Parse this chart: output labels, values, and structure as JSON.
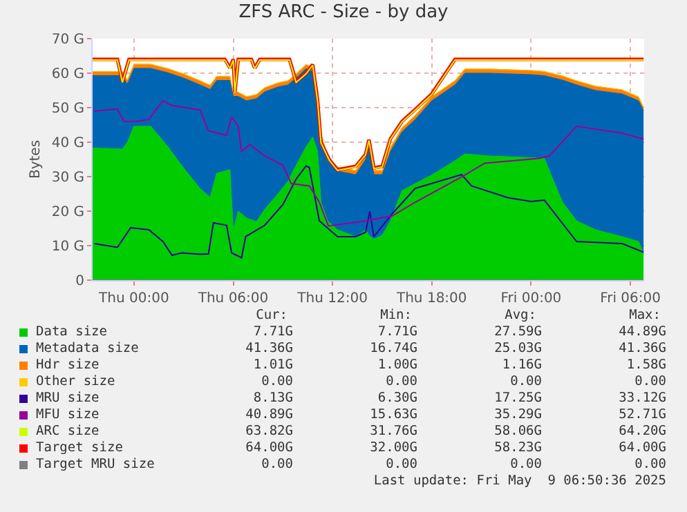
{
  "chart_data": {
    "type": "area",
    "stacked": true,
    "title": "ZFS ARC - Size - by day",
    "ylabel": "Bytes",
    "legend": "bottom",
    "grid": true,
    "xlim": [
      "2025-05-07T21:30",
      "2025-05-09T06:50"
    ],
    "xticks": [
      {
        "value": "2025-05-08T00:00",
        "label": "Thu 00:00"
      },
      {
        "value": "2025-05-08T06:00",
        "label": "Thu 06:00"
      },
      {
        "value": "2025-05-08T12:00",
        "label": "Thu 12:00"
      },
      {
        "value": "2025-05-08T18:00",
        "label": "Thu 18:00"
      },
      {
        "value": "2025-05-09T00:00",
        "label": "Fri 00:00"
      },
      {
        "value": "2025-05-09T06:00",
        "label": "Fri 06:00"
      }
    ],
    "ylim": [
      0,
      70
    ],
    "yticks": [
      0,
      {
        "value": 10,
        "label": "10 G"
      },
      {
        "value": 20,
        "label": "20 G"
      },
      {
        "value": 30,
        "label": "30 G"
      },
      {
        "value": 40,
        "label": "40 G"
      },
      {
        "value": 50,
        "label": "50 G"
      },
      {
        "value": 60,
        "label": "60 G"
      },
      {
        "value": 70,
        "label": "70 G"
      }
    ],
    "x": [
      "2025-05-07T21:30",
      "2025-05-07T23:18",
      "2025-05-07T23:36",
      "2025-05-08T00:00",
      "2025-05-08T01:00",
      "2025-05-08T02:00",
      "2025-05-08T03:00",
      "2025-05-08T04:00",
      "2025-05-08T04:36",
      "2025-05-08T05:00",
      "2025-05-08T05:48",
      "2025-05-08T06:00",
      "2025-05-08T06:18",
      "2025-05-08T06:48",
      "2025-05-08T07:24",
      "2025-05-08T07:54",
      "2025-05-08T08:42",
      "2025-05-08T09:18",
      "2025-05-08T09:48",
      "2025-05-08T10:24",
      "2025-05-08T10:48",
      "2025-05-08T11:06",
      "2025-05-08T11:18",
      "2025-05-08T11:42",
      "2025-05-08T12:18",
      "2025-05-08T13:24",
      "2025-05-08T14:00",
      "2025-05-08T14:12",
      "2025-05-08T14:30",
      "2025-05-08T15:00",
      "2025-05-08T15:30",
      "2025-05-08T16:12",
      "2025-05-08T17:00",
      "2025-05-08T18:00",
      "2025-05-08T19:24",
      "2025-05-08T20:00",
      "2025-05-08T21:30",
      "2025-05-09T00:00",
      "2025-05-09T00:48",
      "2025-05-09T01:12",
      "2025-05-09T01:54",
      "2025-05-09T02:45",
      "2025-05-09T03:54",
      "2025-05-09T05:30",
      "2025-05-09T06:30",
      "2025-05-09T06:48"
    ],
    "series": [
      {
        "name": "Data size",
        "color": "#00cc00",
        "values": [
          38.3,
          38,
          40,
          44.6,
          44.6,
          39,
          32.5,
          26.5,
          24,
          31,
          32,
          14.6,
          20,
          18,
          17,
          20.5,
          25,
          28.6,
          33.3,
          38.6,
          41.5,
          37.3,
          22.6,
          17.2,
          14.6,
          12.6,
          14.6,
          13,
          11.9,
          13,
          17.2,
          26,
          28,
          30.5,
          34.6,
          36.6,
          36,
          35.5,
          35.3,
          30.6,
          22.6,
          17.2,
          14.6,
          12.6,
          11.2,
          7.7
        ]
      },
      {
        "name": "Metadata size",
        "color": "#0066b3",
        "values": [
          21,
          21.3,
          16.8,
          16.8,
          16.8,
          21.2,
          26.1,
          30.1,
          31.3,
          26.9,
          25.9,
          38.7,
          33.3,
          34,
          35.6,
          34.1,
          31,
          28,
          25.3,
          22.7,
          19,
          17,
          18.7,
          17.4,
          17,
          18,
          20.4,
          26.3,
          18.7,
          17.6,
          20.1,
          17,
          18.6,
          21.5,
          22,
          23.4,
          24,
          24.1,
          24,
          28.2,
          35.4,
          39.4,
          40.4,
          41.4,
          40.8,
          41.4
        ]
      },
      {
        "name": "Hdr size",
        "color": "#ff8000",
        "values": [
          1.2,
          1.2,
          1.2,
          1.2,
          1.2,
          1.2,
          1.2,
          1.2,
          1.2,
          1.2,
          1.2,
          1.2,
          1.2,
          1.2,
          1.2,
          1.2,
          1.2,
          1.2,
          1.2,
          1.2,
          1.2,
          1.2,
          1.2,
          1.2,
          1.2,
          1.2,
          1.2,
          1.2,
          1.2,
          1.2,
          1.2,
          1.2,
          1.2,
          1.2,
          1.2,
          1.2,
          1.2,
          1.2,
          1.2,
          1.2,
          1.2,
          1.2,
          1.2,
          1.2,
          1.1,
          1.0
        ]
      },
      {
        "name": "Other size",
        "color": "#ffcc00",
        "values": [
          null,
          null,
          null,
          null,
          null,
          null,
          null,
          null,
          null,
          null,
          null,
          null,
          null,
          null,
          null,
          null,
          null,
          null,
          null,
          null,
          null,
          null,
          null,
          null,
          null,
          null,
          null,
          null,
          null,
          null,
          null,
          null,
          null,
          null,
          null,
          null,
          null,
          null,
          null,
          null,
          null,
          null,
          null,
          null,
          null,
          null
        ]
      },
      {
        "name": "MRU size",
        "type": "line",
        "color": "#330099",
        "x": [
          "2025-05-07T21:36",
          "2025-05-07T23:00",
          "2025-05-07T23:48",
          "2025-05-08T00:54",
          "2025-05-08T01:45",
          "2025-05-08T02:18",
          "2025-05-08T02:54",
          "2025-05-08T04:00",
          "2025-05-08T04:30",
          "2025-05-08T04:48",
          "2025-05-08T05:36",
          "2025-05-08T05:54",
          "2025-05-08T06:30",
          "2025-05-08T06:45",
          "2025-05-08T07:54",
          "2025-05-08T09:00",
          "2025-05-08T09:48",
          "2025-05-08T10:24",
          "2025-05-08T10:36",
          "2025-05-08T11:12",
          "2025-05-08T12:18",
          "2025-05-08T13:24",
          "2025-05-08T14:00",
          "2025-05-08T14:15",
          "2025-05-08T14:30",
          "2025-05-08T15:36",
          "2025-05-08T17:00",
          "2025-05-08T19:48",
          "2025-05-08T20:24",
          "2025-05-08T22:36",
          "2025-05-09T00:00",
          "2025-05-09T00:48",
          "2025-05-09T02:45",
          "2025-05-09T05:30",
          "2025-05-09T06:48"
        ],
        "values": [
          10.6,
          9.5,
          15.2,
          14.6,
          11.2,
          7.2,
          7.9,
          7.5,
          7.6,
          16.6,
          15.9,
          7.9,
          6.5,
          12.6,
          15.9,
          21.9,
          29.3,
          33.1,
          32.6,
          17.2,
          12.6,
          12.6,
          13.9,
          19.9,
          12.6,
          19.2,
          26.6,
          30.6,
          27.3,
          23.9,
          22.8,
          23.2,
          11.2,
          10.6,
          8.1
        ]
      },
      {
        "name": "MFU size",
        "type": "line",
        "color": "#990099",
        "x": [
          "2025-05-07T21:36",
          "2025-05-07T23:00",
          "2025-05-07T23:24",
          "2025-05-08T00:06",
          "2025-05-08T00:54",
          "2025-05-08T01:45",
          "2025-05-08T02:18",
          "2025-05-08T04:00",
          "2025-05-08T04:30",
          "2025-05-08T05:36",
          "2025-05-08T05:54",
          "2025-05-08T06:18",
          "2025-05-08T06:30",
          "2025-05-08T07:00",
          "2025-05-08T07:54",
          "2025-05-08T09:00",
          "2025-05-08T09:30",
          "2025-05-08T10:36",
          "2025-05-08T11:12",
          "2025-05-08T11:45",
          "2025-05-08T14:00",
          "2025-05-08T15:36",
          "2025-05-08T17:00",
          "2025-05-08T19:48",
          "2025-05-08T21:12",
          "2025-05-09T00:30",
          "2025-05-09T01:06",
          "2025-05-09T02:45",
          "2025-05-09T05:30",
          "2025-05-09T06:48"
        ],
        "values": [
          49,
          49.6,
          46,
          46,
          46.6,
          52,
          50.6,
          49.3,
          43.3,
          42,
          47.3,
          44.6,
          37.3,
          39.3,
          36,
          33.3,
          28,
          27.3,
          22.6,
          15.7,
          17.2,
          18.6,
          22.6,
          29.9,
          33.9,
          35.3,
          36,
          44.6,
          42.6,
          40.9
        ]
      },
      {
        "name": "ARC size",
        "type": "line",
        "color": "#ccff00",
        "x": [
          "2025-05-07T21:30",
          "2025-05-07T23:00",
          "2025-05-07T23:18",
          "2025-05-07T23:42",
          "2025-05-08T05:30",
          "2025-05-08T05:48",
          "2025-05-08T06:00",
          "2025-05-08T06:06",
          "2025-05-08T06:18",
          "2025-05-08T07:06",
          "2025-05-08T07:18",
          "2025-05-08T07:36",
          "2025-05-08T09:24",
          "2025-05-08T09:48",
          "2025-05-08T10:24",
          "2025-05-08T10:48",
          "2025-05-08T11:06",
          "2025-05-08T11:18",
          "2025-05-08T11:48",
          "2025-05-08T12:18",
          "2025-05-08T13:24",
          "2025-05-08T14:00",
          "2025-05-08T14:12",
          "2025-05-08T14:30",
          "2025-05-08T15:00",
          "2025-05-08T15:30",
          "2025-05-08T16:12",
          "2025-05-08T17:00",
          "2025-05-08T18:00",
          "2025-05-08T19:24",
          "2025-05-09T06:48"
        ],
        "values": [
          63.8,
          63.8,
          57.3,
          63.8,
          63.8,
          61.3,
          63.8,
          54.3,
          63.8,
          63.8,
          61.3,
          63.8,
          63.8,
          57.3,
          59.8,
          62.3,
          51.8,
          39.8,
          34.8,
          31.8,
          32.8,
          36.3,
          40.5,
          32.3,
          32.8,
          40.8,
          45.8,
          49.3,
          53.8,
          63.8,
          63.8
        ]
      },
      {
        "name": "Target size",
        "type": "line",
        "color": "#ff0000",
        "x": [
          "2025-05-07T21:30",
          "2025-05-07T23:00",
          "2025-05-07T23:18",
          "2025-05-07T23:42",
          "2025-05-08T05:30",
          "2025-05-08T05:48",
          "2025-05-08T06:00",
          "2025-05-08T06:06",
          "2025-05-08T06:18",
          "2025-05-08T07:06",
          "2025-05-08T07:18",
          "2025-05-08T07:36",
          "2025-05-08T09:24",
          "2025-05-08T09:48",
          "2025-05-08T10:24",
          "2025-05-08T10:48",
          "2025-05-08T11:06",
          "2025-05-08T11:18",
          "2025-05-08T11:48",
          "2025-05-08T12:18",
          "2025-05-08T13:24",
          "2025-05-08T14:00",
          "2025-05-08T14:12",
          "2025-05-08T14:30",
          "2025-05-08T15:00",
          "2025-05-08T15:30",
          "2025-05-08T16:12",
          "2025-05-08T17:00",
          "2025-05-08T18:00",
          "2025-05-08T19:24",
          "2025-05-09T06:48"
        ],
        "values": [
          64,
          64,
          57.5,
          64,
          64,
          61.5,
          64,
          54.5,
          64,
          64,
          61.5,
          64,
          64,
          57.5,
          60,
          62.5,
          52,
          40,
          35,
          32,
          33,
          36.5,
          40.7,
          32.5,
          33,
          41,
          46,
          49.5,
          54,
          64,
          64
        ]
      },
      {
        "name": "Target MRU size",
        "type": "line",
        "color": "#808080",
        "x": [
          "2025-05-07T21:30",
          "2025-05-09T06:48"
        ],
        "values": [
          0,
          0
        ]
      }
    ],
    "annotations": [
      "Cur:",
      "Min:",
      "Avg:",
      "Max:",
      "7.71G",
      "7.71G",
      "27.59G",
      "44.89G",
      "41.36G",
      "16.74G",
      "25.03G",
      "41.36G",
      "1.01G",
      "1.00G",
      "1.16G",
      "1.58G",
      "0.00",
      "0.00",
      "0.00",
      "0.00",
      "8.13G",
      "6.30G",
      "17.25G",
      "33.12G",
      "40.89G",
      "15.63G",
      "35.29G",
      "52.71G",
      "63.82G",
      "31.76G",
      "58.06G",
      "64.20G",
      "64.00G",
      "32.00G",
      "58.23G",
      "64.00G",
      "0.00",
      "0.00",
      "0.00",
      "0.00",
      "Last update: Fri May  9 06:50:36 2025"
    ]
  }
}
